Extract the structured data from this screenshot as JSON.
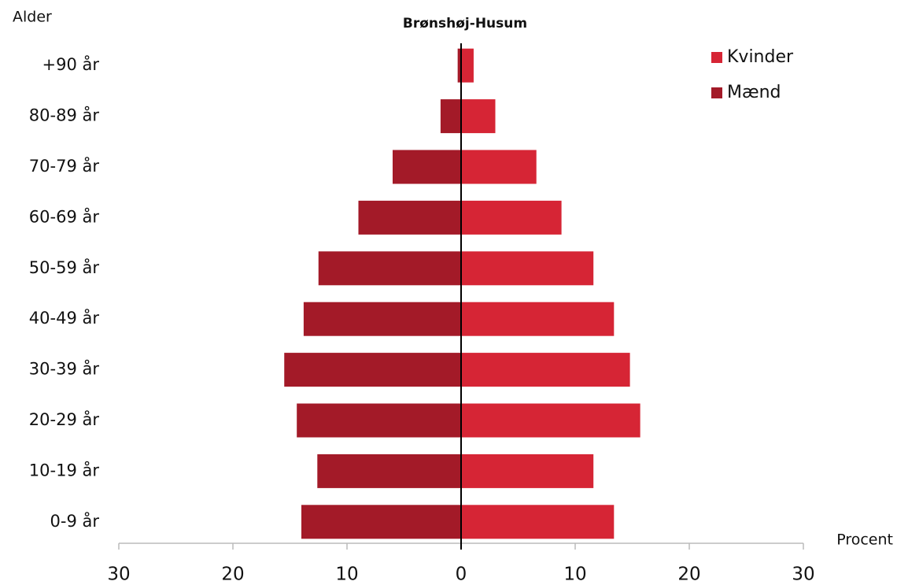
{
  "chart_data": {
    "type": "pyramid",
    "title": "Brønshøj-Husum",
    "y_label": "Alder",
    "x_label": "Procent",
    "categories": [
      "+90 år",
      "80-89 år",
      "70-79 år",
      "60-69 år",
      "50-59 år",
      "40-49 år",
      "30-39 år",
      "20-29 år",
      "10-19 år",
      "0-9 år"
    ],
    "series": [
      {
        "name": "Kvinder",
        "color": "#d62535",
        "values": [
          1.1,
          3.0,
          6.6,
          8.8,
          11.6,
          13.4,
          14.8,
          15.7,
          11.6,
          13.4
        ]
      },
      {
        "name": "Mænd",
        "color": "#a31a28",
        "values": [
          -0.3,
          -1.8,
          -6.0,
          -9.0,
          -12.5,
          -13.8,
          -15.5,
          -14.4,
          -12.6,
          -14.0
        ]
      }
    ],
    "xlim": [
      -30,
      30
    ],
    "xticks": [
      {
        "value": -30,
        "label": "30"
      },
      {
        "value": -20,
        "label": "20"
      },
      {
        "value": -10,
        "label": "10"
      },
      0,
      10,
      20,
      30
    ],
    "legend": "top-right"
  }
}
